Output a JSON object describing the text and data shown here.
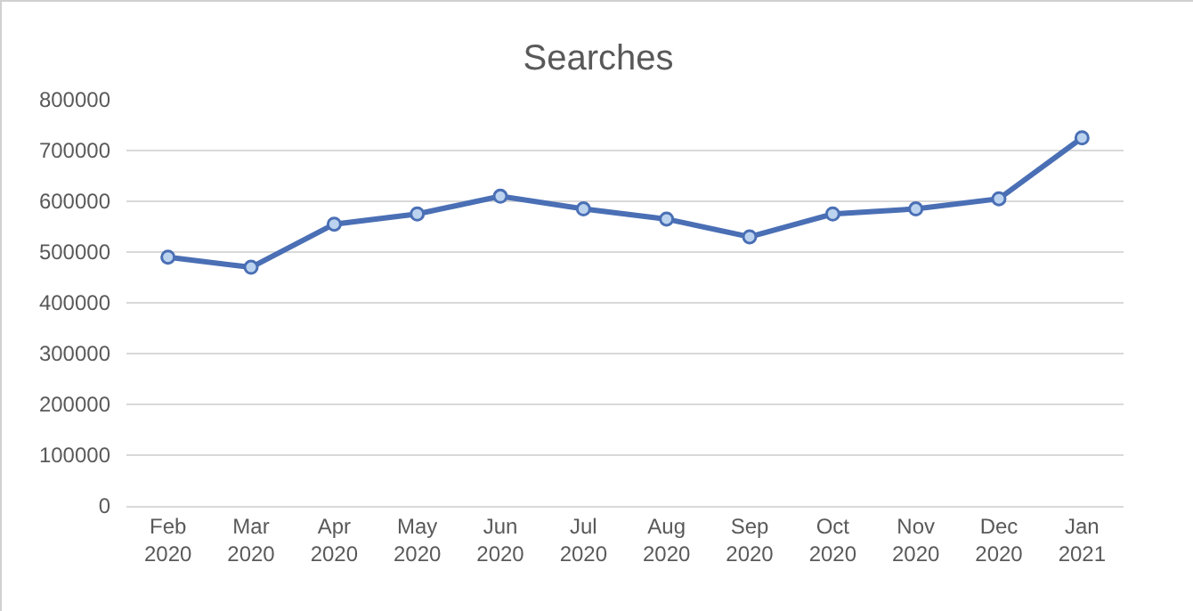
{
  "chart_data": {
    "type": "line",
    "title": "Searches",
    "categories": [
      "Feb\n2020",
      "Mar\n2020",
      "Apr\n2020",
      "May\n2020",
      "Jun\n2020",
      "Jul\n2020",
      "Aug\n2020",
      "Sep\n2020",
      "Oct\n2020",
      "Nov\n2020",
      "Dec\n2020",
      "Jan\n2021"
    ],
    "series": [
      {
        "color": "#4a6fb5",
        "values": [
          490000,
          470000,
          555000,
          575000,
          610000,
          585000,
          565000,
          530000,
          575000,
          585000,
          605000,
          725000
        ]
      }
    ],
    "ylim": [
      0,
      800000
    ],
    "yticks": [
      0,
      100000,
      200000,
      300000,
      400000,
      500000,
      600000,
      700000,
      800000
    ],
    "grid": "y",
    "legend": false,
    "marker": "circle",
    "line_style": "solid"
  }
}
